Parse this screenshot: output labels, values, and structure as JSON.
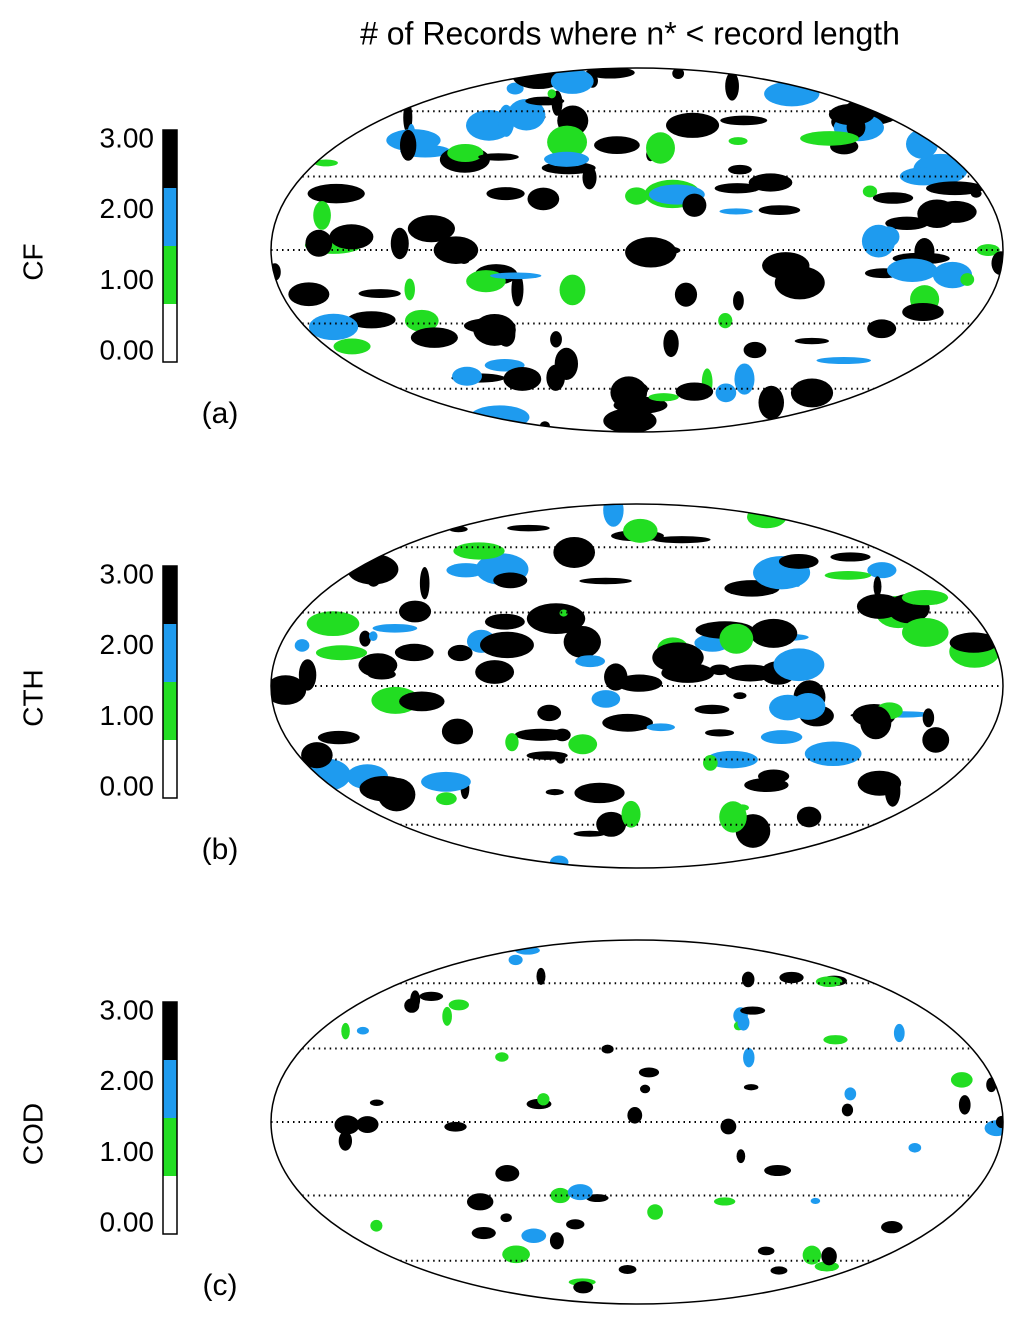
{
  "title": "# of Records where n* < record length",
  "panels": [
    {
      "variable": "CF",
      "label": "(a)",
      "colorbar": {
        "lim": [
          -0.14,
          3.14
        ],
        "bins": [
          -0.14,
          0.68,
          1.5,
          2.32,
          3.14
        ],
        "colors": [
          "#ffffff",
          "#22dd22",
          "#1e9bef",
          "#000000"
        ],
        "ticks": [
          {
            "value": 0,
            "label": "0.00"
          },
          {
            "value": 1,
            "label": "1.00"
          },
          {
            "value": 2,
            "label": "2.00"
          },
          {
            "value": 3,
            "label": "3.00"
          }
        ]
      }
    },
    {
      "variable": "CTH",
      "label": "(b)",
      "colorbar": {
        "lim": [
          -0.14,
          3.14
        ],
        "bins": [
          -0.14,
          0.68,
          1.5,
          2.32,
          3.14
        ],
        "colors": [
          "#ffffff",
          "#22dd22",
          "#1e9bef",
          "#000000"
        ],
        "ticks": [
          {
            "value": 0,
            "label": "0.00"
          },
          {
            "value": 1,
            "label": "1.00"
          },
          {
            "value": 2,
            "label": "2.00"
          },
          {
            "value": 3,
            "label": "3.00"
          }
        ]
      }
    },
    {
      "variable": "COD",
      "label": "(c)",
      "colorbar": {
        "lim": [
          -0.14,
          3.14
        ],
        "bins": [
          -0.14,
          0.68,
          1.5,
          2.32,
          3.14
        ],
        "colors": [
          "#ffffff",
          "#22dd22",
          "#1e9bef",
          "#000000"
        ],
        "ticks": [
          {
            "value": 0,
            "label": "0.00"
          },
          {
            "value": 1,
            "label": "1.00"
          },
          {
            "value": 2,
            "label": "2.00"
          },
          {
            "value": 3,
            "label": "3.00"
          }
        ]
      }
    }
  ]
}
